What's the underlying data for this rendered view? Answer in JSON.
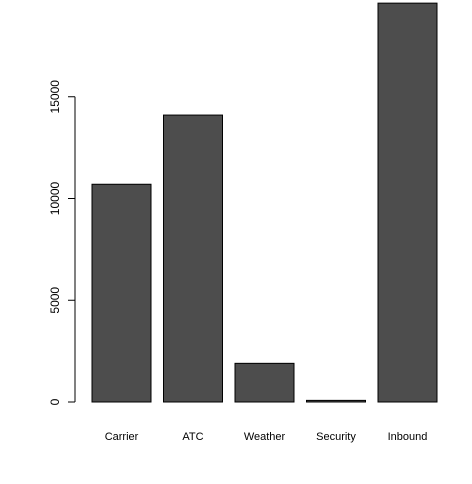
{
  "chart_data": {
    "type": "bar",
    "title": "",
    "xlabel": "",
    "ylabel": "",
    "categories": [
      "Carrier",
      "ATC",
      "Weather",
      "Security",
      "Inbound"
    ],
    "values": [
      10700,
      14100,
      1900,
      80,
      19600
    ],
    "yticks": [
      "0",
      "5000",
      "10000",
      "15000"
    ],
    "ylim": [
      0,
      20000
    ],
    "grid": false,
    "legend": "none",
    "colors": {
      "bar_fill": "#4d4d4d",
      "bar_stroke": "#000000",
      "axis": "#000000",
      "background": "#ffffff"
    }
  }
}
